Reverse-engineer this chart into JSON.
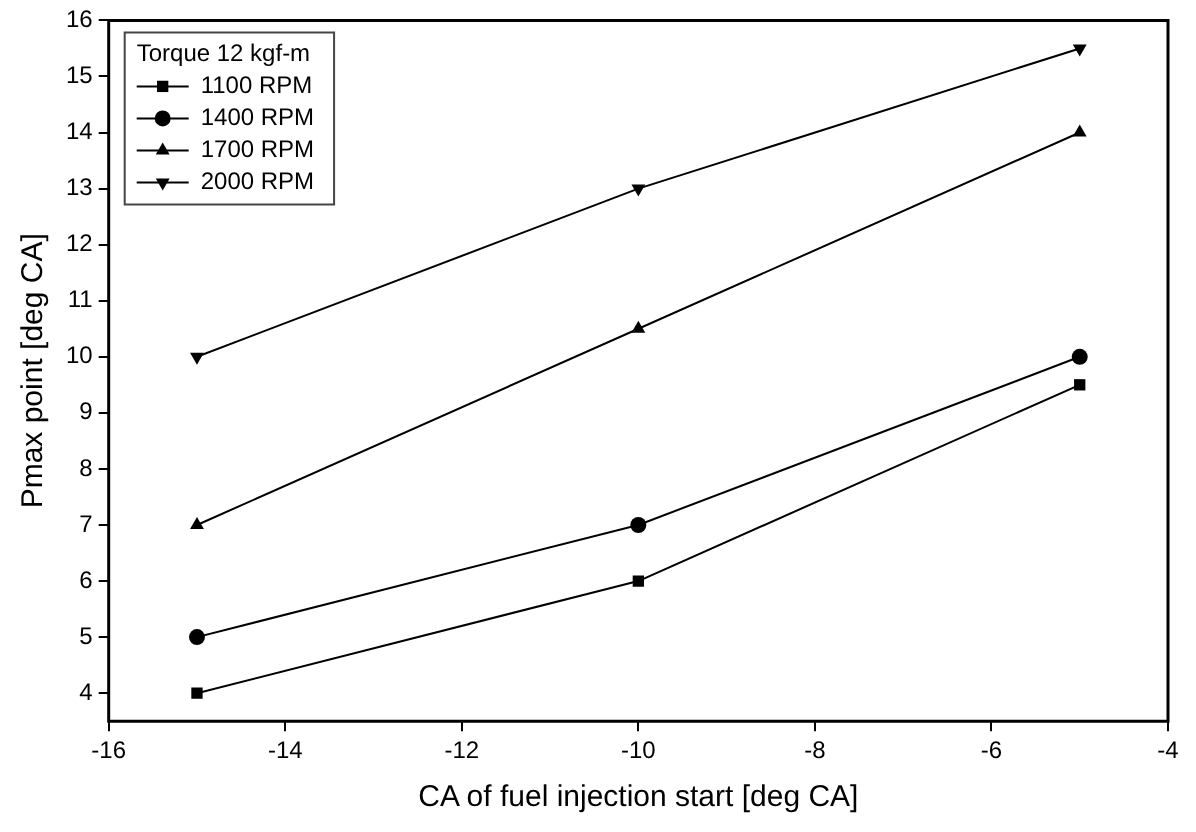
{
  "chart_data": {
    "type": "line",
    "xlabel": "CA of fuel injection start [deg CA]",
    "ylabel": "Pmax point [deg CA]",
    "legend_title": "Torque 12 kgf-m",
    "legend": "top left",
    "grid": false,
    "x": [
      -15,
      -10,
      -5
    ],
    "xlim": [
      -16,
      -4
    ],
    "xticks": [
      -16,
      -14,
      -12,
      -10,
      -8,
      -6,
      -4
    ],
    "ylim": [
      3.5,
      16
    ],
    "yticks": [
      4,
      5,
      6,
      7,
      8,
      9,
      10,
      11,
      12,
      13,
      14,
      15,
      16
    ],
    "series": [
      {
        "name": "1100 RPM",
        "color": "#000000",
        "marker": "square",
        "values": [
          4,
          6,
          9.5
        ]
      },
      {
        "name": "1400 RPM",
        "color": "#000000",
        "marker": "circle",
        "values": [
          5,
          7,
          10
        ]
      },
      {
        "name": "1700 RPM",
        "color": "#000000",
        "marker": "triangle",
        "values": [
          7,
          10.5,
          14
        ]
      },
      {
        "name": "2000 RPM",
        "color": "#000000",
        "marker": "triangle-down",
        "values": [
          10,
          13,
          15.5
        ]
      }
    ]
  }
}
